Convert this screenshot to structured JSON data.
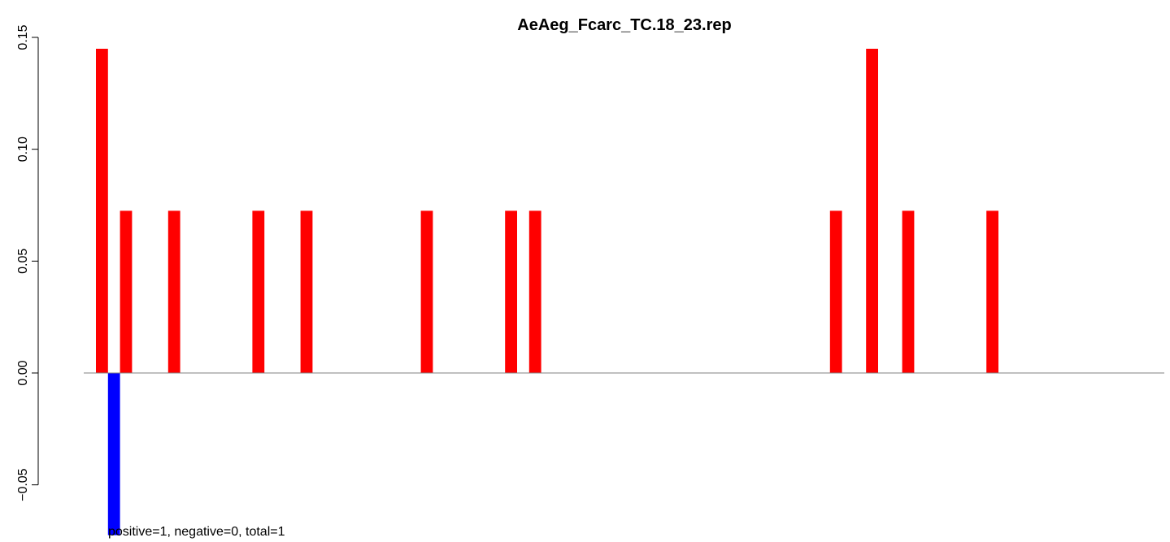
{
  "chart_data": {
    "type": "bar",
    "title": "AeAeg_Fcarc_TC.18_23.rep",
    "xlabel": "",
    "ylabel": "",
    "ylim": [
      -0.06,
      0.15
    ],
    "yticks": [
      -0.05,
      0.0,
      0.05,
      0.1,
      0.15
    ],
    "ytick_labels": [
      "−0.05",
      "0.00",
      "0.05",
      "0.10",
      "0.15"
    ],
    "num_slots": 89,
    "grid": false,
    "legend": "none",
    "colors": {
      "positive": "#ff0000",
      "negative": "#0000ff",
      "baseline": "#808080"
    },
    "series": [
      {
        "values_by_slot": [
          {
            "slot": 1,
            "value": 0.1449
          },
          {
            "slot": 3,
            "value": 0.0725
          },
          {
            "slot": 7,
            "value": 0.0725
          },
          {
            "slot": 14,
            "value": 0.0725
          },
          {
            "slot": 18,
            "value": 0.0725
          },
          {
            "slot": 28,
            "value": 0.0725
          },
          {
            "slot": 35,
            "value": 0.0725
          },
          {
            "slot": 37,
            "value": 0.0725
          },
          {
            "slot": 62,
            "value": 0.0725
          },
          {
            "slot": 65,
            "value": 0.1449
          },
          {
            "slot": 68,
            "value": 0.0725
          },
          {
            "slot": 75,
            "value": 0.0725
          }
        ]
      },
      {
        "values_by_slot": [
          {
            "slot": 2,
            "value": -0.0725
          }
        ]
      }
    ],
    "footer": "positive=1, negative=0, total=1"
  }
}
